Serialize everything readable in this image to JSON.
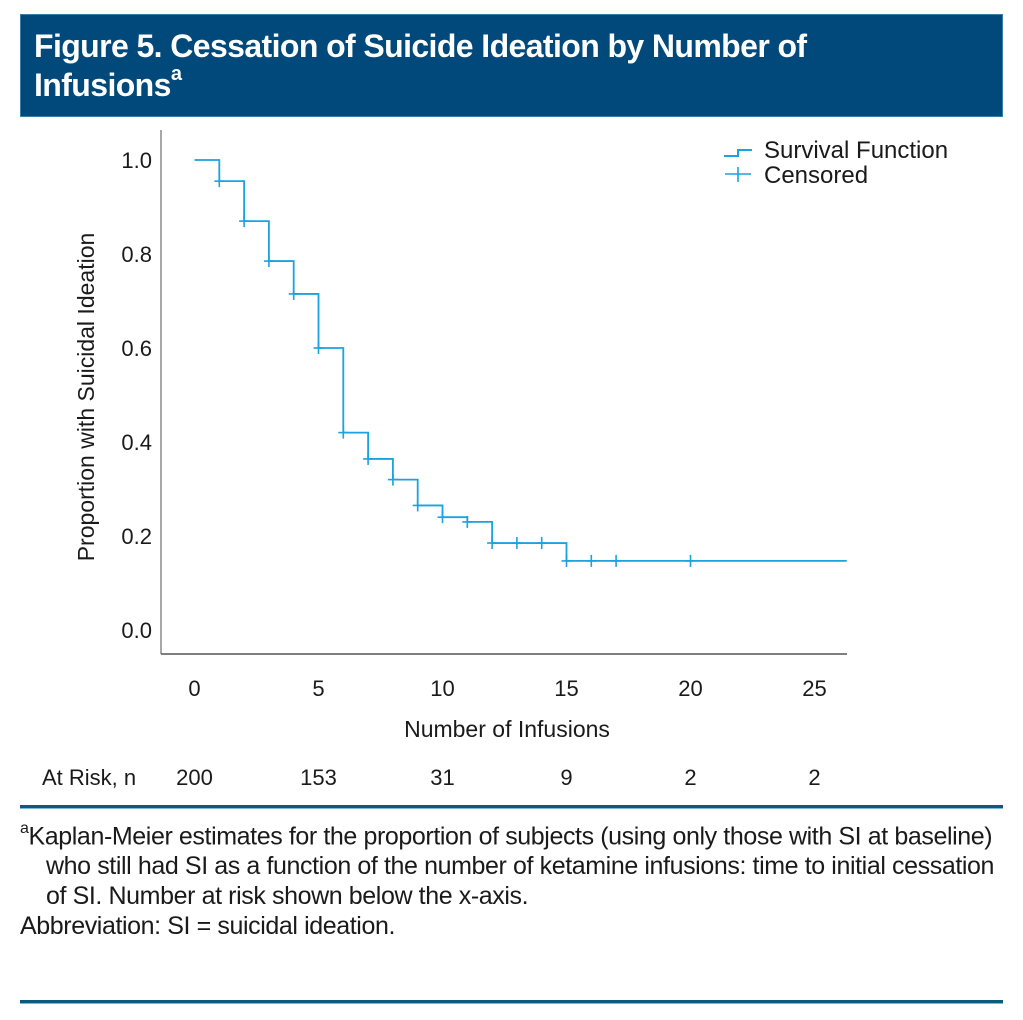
{
  "header": {
    "title": "Figure 5. Cessation of Suicide Ideation by Number of Infusions",
    "title_line1": "Figure 5. Cessation of Suicide Ideation by Number of",
    "title_line2": "Infusions",
    "title_superscript": "a",
    "background_color": "#00497a"
  },
  "chart_data": {
    "type": "line",
    "subtype": "kaplan-meier-step",
    "title": "Figure 5. Cessation of Suicide Ideation by Number of Infusions",
    "xlabel": "Number of Infusions",
    "ylabel": "Proportion with Suicidal Ideation",
    "xlim": [
      -1.3,
      26.3
    ],
    "ylim": [
      -0.05,
      1.05
    ],
    "x_ticks": [
      0,
      5,
      10,
      15,
      20,
      25
    ],
    "x_tick_labels": [
      "0",
      "5",
      "10",
      "15",
      "20",
      "25"
    ],
    "y_ticks": [
      0.0,
      0.2,
      0.4,
      0.6,
      0.8,
      1.0
    ],
    "y_tick_labels": [
      "0.0",
      "0.2",
      "0.4",
      "0.6",
      "0.8",
      "1.0"
    ],
    "grid": false,
    "legend_position": "top-right",
    "color": "#1aa3e0",
    "series": [
      {
        "name": "Survival Function",
        "steps": [
          {
            "x": 0,
            "y": 1.0
          },
          {
            "x": 1,
            "y": 0.955
          },
          {
            "x": 2,
            "y": 0.87
          },
          {
            "x": 3,
            "y": 0.785
          },
          {
            "x": 4,
            "y": 0.715
          },
          {
            "x": 5,
            "y": 0.6
          },
          {
            "x": 6,
            "y": 0.42
          },
          {
            "x": 7,
            "y": 0.364
          },
          {
            "x": 8,
            "y": 0.32
          },
          {
            "x": 9,
            "y": 0.265
          },
          {
            "x": 10,
            "y": 0.24
          },
          {
            "x": 11,
            "y": 0.23
          },
          {
            "x": 12,
            "y": 0.185
          },
          {
            "x": 15,
            "y": 0.147
          }
        ],
        "end_x": 26.3
      },
      {
        "name": "Censored",
        "points": [
          {
            "x": 1,
            "y": 0.955
          },
          {
            "x": 2,
            "y": 0.87
          },
          {
            "x": 3,
            "y": 0.785
          },
          {
            "x": 4,
            "y": 0.715
          },
          {
            "x": 5,
            "y": 0.6
          },
          {
            "x": 6,
            "y": 0.42
          },
          {
            "x": 7,
            "y": 0.364
          },
          {
            "x": 8,
            "y": 0.32
          },
          {
            "x": 9,
            "y": 0.265
          },
          {
            "x": 10,
            "y": 0.24
          },
          {
            "x": 11,
            "y": 0.23
          },
          {
            "x": 12,
            "y": 0.185
          },
          {
            "x": 13,
            "y": 0.185
          },
          {
            "x": 14,
            "y": 0.185
          },
          {
            "x": 15,
            "y": 0.147
          },
          {
            "x": 16,
            "y": 0.147
          },
          {
            "x": 17,
            "y": 0.147
          },
          {
            "x": 20,
            "y": 0.147
          }
        ]
      }
    ],
    "legend": [
      "Survival Function",
      "Censored"
    ],
    "at_risk": {
      "label": "At Risk, n",
      "x": [
        0,
        5,
        10,
        15,
        20,
        25
      ],
      "values": [
        "200",
        "153",
        "31",
        "9",
        "2",
        "2"
      ]
    }
  },
  "footnote": {
    "marker": "a",
    "main": "Kaplan-Meier estimates for the proportion of subjects (using only those with SI at baseline) who still had SI as a function of the number of ketamine infusions: time to initial cessation of SI. Number at risk shown below the x-axis.",
    "abbreviation": "Abbreviation: SI = suicidal ideation."
  }
}
